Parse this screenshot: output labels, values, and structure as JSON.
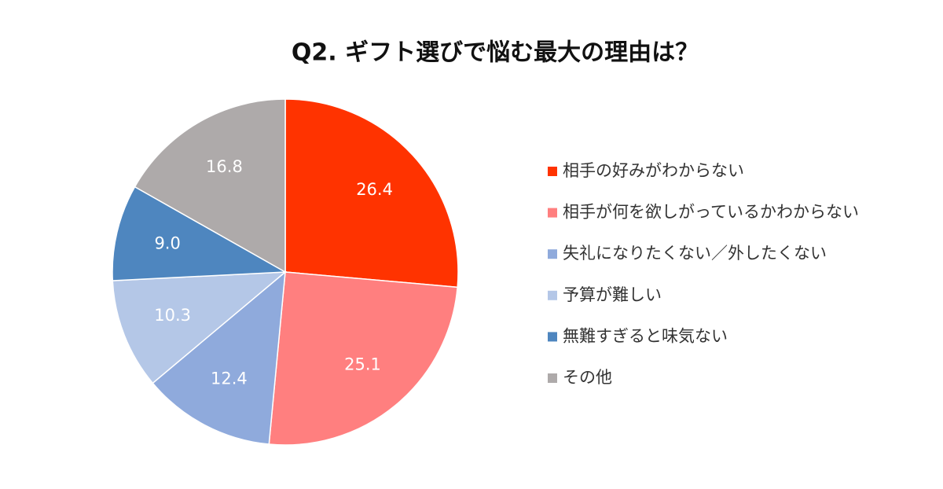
{
  "chart_data": {
    "type": "pie",
    "title": "Q2. ギフト選びで悩む最大の理由は？",
    "categories": [
      "相手の好みがわからない",
      "相手が何を欲しがっているかわからない",
      "失礼になりたくない／外したくない",
      "予算が難しい",
      "無難すぎると味気ない",
      "その他"
    ],
    "values": [
      26.4,
      25.1,
      12.4,
      10.3,
      9.0,
      16.8
    ],
    "value_labels": [
      "26.4",
      "25.1",
      "12.4",
      "10.3",
      "9.0",
      "16.8"
    ],
    "colors": [
      "#ff3300",
      "#ff7f7f",
      "#8faadc",
      "#b4c7e7",
      "#4e86bf",
      "#aeaaaa"
    ],
    "legend": "right"
  }
}
